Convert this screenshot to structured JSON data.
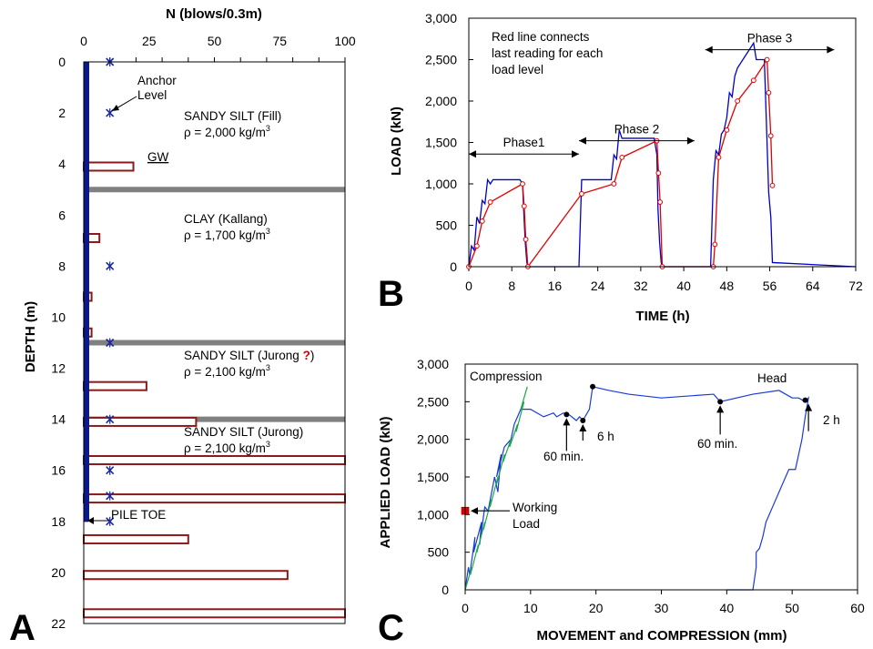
{
  "chart_data": [
    {
      "panel": "A",
      "type": "bar",
      "orientation": "horizontal",
      "panel_label": "A",
      "xlabel": "N  (blows/0.3m)",
      "ylabel": "DEPTH  (m)",
      "xlim": [
        0,
        100
      ],
      "ylim": [
        0,
        22
      ],
      "x_ticks": [
        "0",
        "25",
        "50",
        "75",
        "100"
      ],
      "y_ticks": [
        "0",
        "2",
        "4",
        "6",
        "8",
        "10",
        "12",
        "14",
        "16",
        "18",
        "20",
        "22"
      ],
      "x_minor_ticks": [
        "10",
        "20",
        "30",
        "40",
        "50",
        "60",
        "70",
        "80",
        "90",
        "100"
      ],
      "bars": [
        {
          "depth": 4.1,
          "n": 19
        },
        {
          "depth": 6.9,
          "n": 6
        },
        {
          "depth": 9.2,
          "n": 3
        },
        {
          "depth": 10.6,
          "n": 3
        },
        {
          "depth": 12.7,
          "n": 24
        },
        {
          "depth": 14.1,
          "n": 43
        },
        {
          "depth": 15.6,
          "n": 100
        },
        {
          "depth": 17.1,
          "n": 100
        },
        {
          "depth": 18.7,
          "n": 40
        },
        {
          "depth": 20.1,
          "n": 78
        },
        {
          "depth": 21.6,
          "n": 100
        }
      ],
      "layer_boundaries": [
        5.0,
        11.0,
        14.0
      ],
      "sample_markers": [
        {
          "depth": 0,
          "n": 10
        },
        {
          "depth": 2,
          "n": 10
        },
        {
          "depth": 8,
          "n": 10
        },
        {
          "depth": 11,
          "n": 10
        },
        {
          "depth": 14,
          "n": 10
        },
        {
          "depth": 16,
          "n": 10
        },
        {
          "depth": 17,
          "n": 10
        },
        {
          "depth": 18,
          "n": 10
        }
      ],
      "pile_toe_depth": 18,
      "annotations": {
        "anchor": [
          "Anchor",
          "Level"
        ],
        "gw": "GW",
        "pile_toe": "PILE TOE",
        "layer1_name": "SANDY SILT (Fill)",
        "layer1_density": "ρ = 2,000 kg/m",
        "layer2_name": "CLAY (Kallang)",
        "layer2_density": "ρ = 1,700 kg/m",
        "layer3_name": "SANDY SILT (Jurong ",
        "layer3_q": "?",
        "layer3_close": ")",
        "layer3_density": "ρ = 2,100 kg/m",
        "layer4_name": "SANDY SILT (Jurong)",
        "layer4_density": "ρ = 2,100 kg/m",
        "cube": "3"
      },
      "colors": {
        "bar": "#8b1a1a",
        "pile": "#0a1a8c",
        "boundary": "#808080",
        "marker": "#1a2a9e"
      }
    },
    {
      "panel": "B",
      "type": "line",
      "panel_label": "B",
      "xlabel": "TIME  (h)",
      "ylabel": "LOAD  (kN)",
      "xlim": [
        0,
        72
      ],
      "ylim": [
        0,
        3000
      ],
      "x_ticks": [
        "0",
        "8",
        "16",
        "24",
        "32",
        "40",
        "48",
        "56",
        "64",
        "72"
      ],
      "y_ticks": [
        "0",
        "500",
        "1,000",
        "1,500",
        "2,000",
        "2,500",
        "3,000"
      ],
      "series": [
        {
          "color": "#0000cc",
          "x": [
            0,
            0.5,
            1,
            1.5,
            2,
            2.5,
            3,
            3.5,
            4,
            4.5,
            9.5,
            10,
            10.2,
            10.5,
            10.8,
            11,
            20.5,
            21,
            21.5,
            26.5,
            27,
            27.5,
            28,
            28.5,
            34.5,
            35,
            35.2,
            35.5,
            35.8,
            36,
            45,
            45.5,
            46,
            46.5,
            47,
            47.5,
            48,
            48.5,
            49,
            49.5,
            50,
            53,
            53.5,
            55,
            55.5,
            55.8,
            56.2,
            56.5,
            72
          ],
          "y": [
            0,
            250,
            200,
            600,
            520,
            800,
            760,
            1050,
            1000,
            1050,
            1050,
            1000,
            700,
            300,
            50,
            0,
            0,
            1050,
            1050,
            1050,
            1350,
            1300,
            1650,
            1550,
            1550,
            1350,
            700,
            300,
            50,
            0,
            0,
            1050,
            1400,
            1350,
            1600,
            1650,
            1800,
            2100,
            2050,
            2300,
            2400,
            2700,
            2500,
            2500,
            1500,
            900,
            600,
            50,
            0
          ]
        },
        {
          "color": "#e00000",
          "x": [
            0,
            1.5,
            2.5,
            4,
            10,
            10.3,
            10.6,
            11,
            21,
            27,
            28.5,
            35,
            35.3,
            35.6,
            36,
            45.5,
            45.8,
            46.5,
            48,
            50,
            53,
            55.5,
            55.8,
            56.2,
            56.5
          ],
          "y": [
            0,
            250,
            550,
            780,
            1000,
            730,
            330,
            0,
            880,
            1000,
            1320,
            1520,
            1130,
            780,
            0,
            0,
            270,
            1320,
            1650,
            2000,
            2250,
            2500,
            2100,
            1580,
            980
          ]
        }
      ],
      "phases": [
        {
          "label": "Phase1",
          "x_start": 0,
          "x_end": 20.5,
          "y": 1360
        },
        {
          "label": "Phase 2",
          "x_start": 20.5,
          "x_end": 42,
          "y": 1520
        },
        {
          "label": "Phase 3",
          "x_start": 44,
          "x_end": 68,
          "y": 2620
        }
      ],
      "note": [
        "Red line connects",
        "last reading for each",
        "load level"
      ]
    },
    {
      "panel": "C",
      "type": "line",
      "panel_label": "C",
      "xlabel": "MOVEMENT and COMPRESSION (mm)",
      "ylabel": "APPLIED LOAD  (kN)",
      "xlim": [
        0,
        60
      ],
      "ylim": [
        0,
        3000
      ],
      "x_ticks": [
        "0",
        "10",
        "20",
        "30",
        "40",
        "50",
        "60"
      ],
      "y_ticks": [
        "0",
        "500",
        "1,000",
        "1,500",
        "2,000",
        "2,500",
        "3,000"
      ],
      "series": [
        {
          "color": "#1a3ad8",
          "x": [
            0,
            0.5,
            0.7,
            1.5,
            1.3,
            2.5,
            2.2,
            3,
            3.5,
            4.5,
            5,
            5.5,
            4.8,
            6,
            7,
            7.5,
            8.5,
            9.5,
            10,
            11,
            12,
            13.5,
            14,
            15,
            16,
            17,
            17.5,
            18,
            19,
            19.5,
            22,
            25,
            30,
            38,
            39,
            44,
            48,
            50,
            51,
            52,
            52.5,
            52,
            51.5,
            51,
            50.5,
            49.5,
            48,
            47,
            46,
            45.5,
            45,
            44.5,
            44.5,
            44,
            40
          ],
          "y": [
            0,
            300,
            200,
            700,
            500,
            900,
            600,
            1100,
            1050,
            1500,
            1300,
            1800,
            1500,
            1900,
            2000,
            2200,
            2400,
            2400,
            2400,
            2350,
            2300,
            2350,
            2300,
            2350,
            2320,
            2250,
            2300,
            2250,
            2400,
            2700,
            2650,
            2600,
            2550,
            2600,
            2500,
            2600,
            2650,
            2550,
            2550,
            2500,
            2550,
            2300,
            2000,
            1800,
            1600,
            1600,
            1300,
            1100,
            900,
            700,
            550,
            500,
            300,
            0,
            0
          ]
        },
        {
          "color": "#1aa84a",
          "x": [
            0,
            1,
            0.8,
            2,
            1.8,
            3,
            2.8,
            4,
            3.8,
            5,
            4.8,
            6,
            5.8,
            7,
            6.8,
            8,
            7.8,
            9,
            8.5,
            9.5
          ],
          "y": [
            0,
            300,
            200,
            600,
            500,
            900,
            800,
            1200,
            1100,
            1500,
            1400,
            1800,
            1700,
            2000,
            1900,
            2200,
            2100,
            2500,
            2400,
            2700
          ]
        }
      ],
      "points_black": [
        {
          "x": 15.5,
          "y": 2330
        },
        {
          "x": 18,
          "y": 2250
        },
        {
          "x": 19.5,
          "y": 2700
        },
        {
          "x": 39,
          "y": 2500
        },
        {
          "x": 52,
          "y": 2520
        }
      ],
      "working_load": {
        "x": 0,
        "y": 1050,
        "label": [
          "Working",
          "Load"
        ]
      },
      "annotations": {
        "compression": "Compression",
        "head": "Head",
        "min60a": "60 min.",
        "h6": "6 h",
        "min60b": "60 min.",
        "h2": "2 h"
      }
    }
  ]
}
